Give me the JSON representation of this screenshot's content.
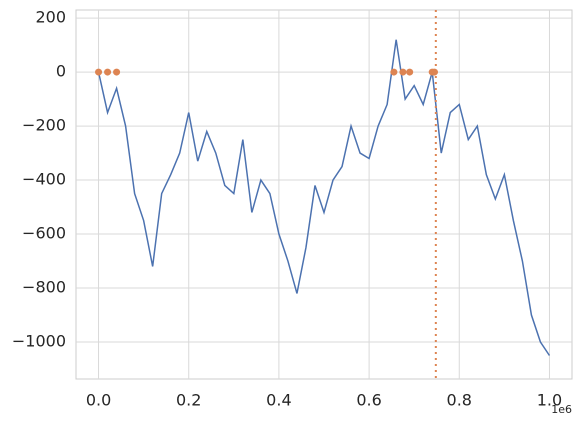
{
  "chart_data": {
    "type": "line",
    "x": [
      0,
      20000,
      40000,
      60000,
      80000,
      100000,
      120000,
      140000,
      160000,
      180000,
      200000,
      220000,
      240000,
      260000,
      280000,
      300000,
      320000,
      340000,
      360000,
      380000,
      400000,
      420000,
      440000,
      460000,
      480000,
      500000,
      520000,
      540000,
      560000,
      580000,
      600000,
      620000,
      640000,
      660000,
      680000,
      700000,
      720000,
      740000,
      760000,
      780000,
      800000,
      820000,
      840000,
      860000,
      880000,
      900000,
      920000,
      940000,
      960000,
      980000,
      1000000
    ],
    "series": [
      {
        "color": "#4c72b0",
        "values": [
          0,
          -150,
          -60,
          -200,
          -450,
          -550,
          -720,
          -450,
          -380,
          -300,
          -150,
          -330,
          -220,
          -300,
          -420,
          -450,
          -250,
          -520,
          -400,
          -450,
          -600,
          -700,
          -820,
          -650,
          -420,
          -520,
          -400,
          -350,
          -200,
          -300,
          -320,
          -200,
          -120,
          120,
          -100,
          -50,
          -120,
          0,
          -300,
          -150,
          -120,
          -250,
          -200,
          -380,
          -470,
          -380,
          -550,
          -700,
          -900,
          -1000,
          -1050
        ]
      }
    ],
    "markers": {
      "color": "#dd8452",
      "x": [
        0,
        20000,
        40000,
        655000,
        675000,
        690000,
        740000,
        745000
      ],
      "values": [
        0,
        0,
        0,
        0,
        0,
        0,
        0,
        0
      ]
    },
    "vline": 748000,
    "vline_color": "#dd8452",
    "xlim": [
      -50000,
      1050000
    ],
    "ylim": [
      -1137,
      230
    ],
    "xticks": [
      {
        "value": 0,
        "label": "0.0"
      },
      {
        "value": 200000,
        "label": "0.2"
      },
      {
        "value": 400000,
        "label": "0.4"
      },
      {
        "value": 600000,
        "label": "0.6"
      },
      {
        "value": 800000,
        "label": "0.8"
      },
      {
        "value": 1000000,
        "label": "1.0"
      }
    ],
    "x_offset_label": "1e6",
    "yticks": [
      {
        "value": -1000,
        "label": "−1000"
      },
      {
        "value": -800,
        "label": "−800"
      },
      {
        "value": -600,
        "label": "−600"
      },
      {
        "value": -400,
        "label": "−400"
      },
      {
        "value": -200,
        "label": "−200"
      },
      0,
      200
    ],
    "grid": true
  }
}
